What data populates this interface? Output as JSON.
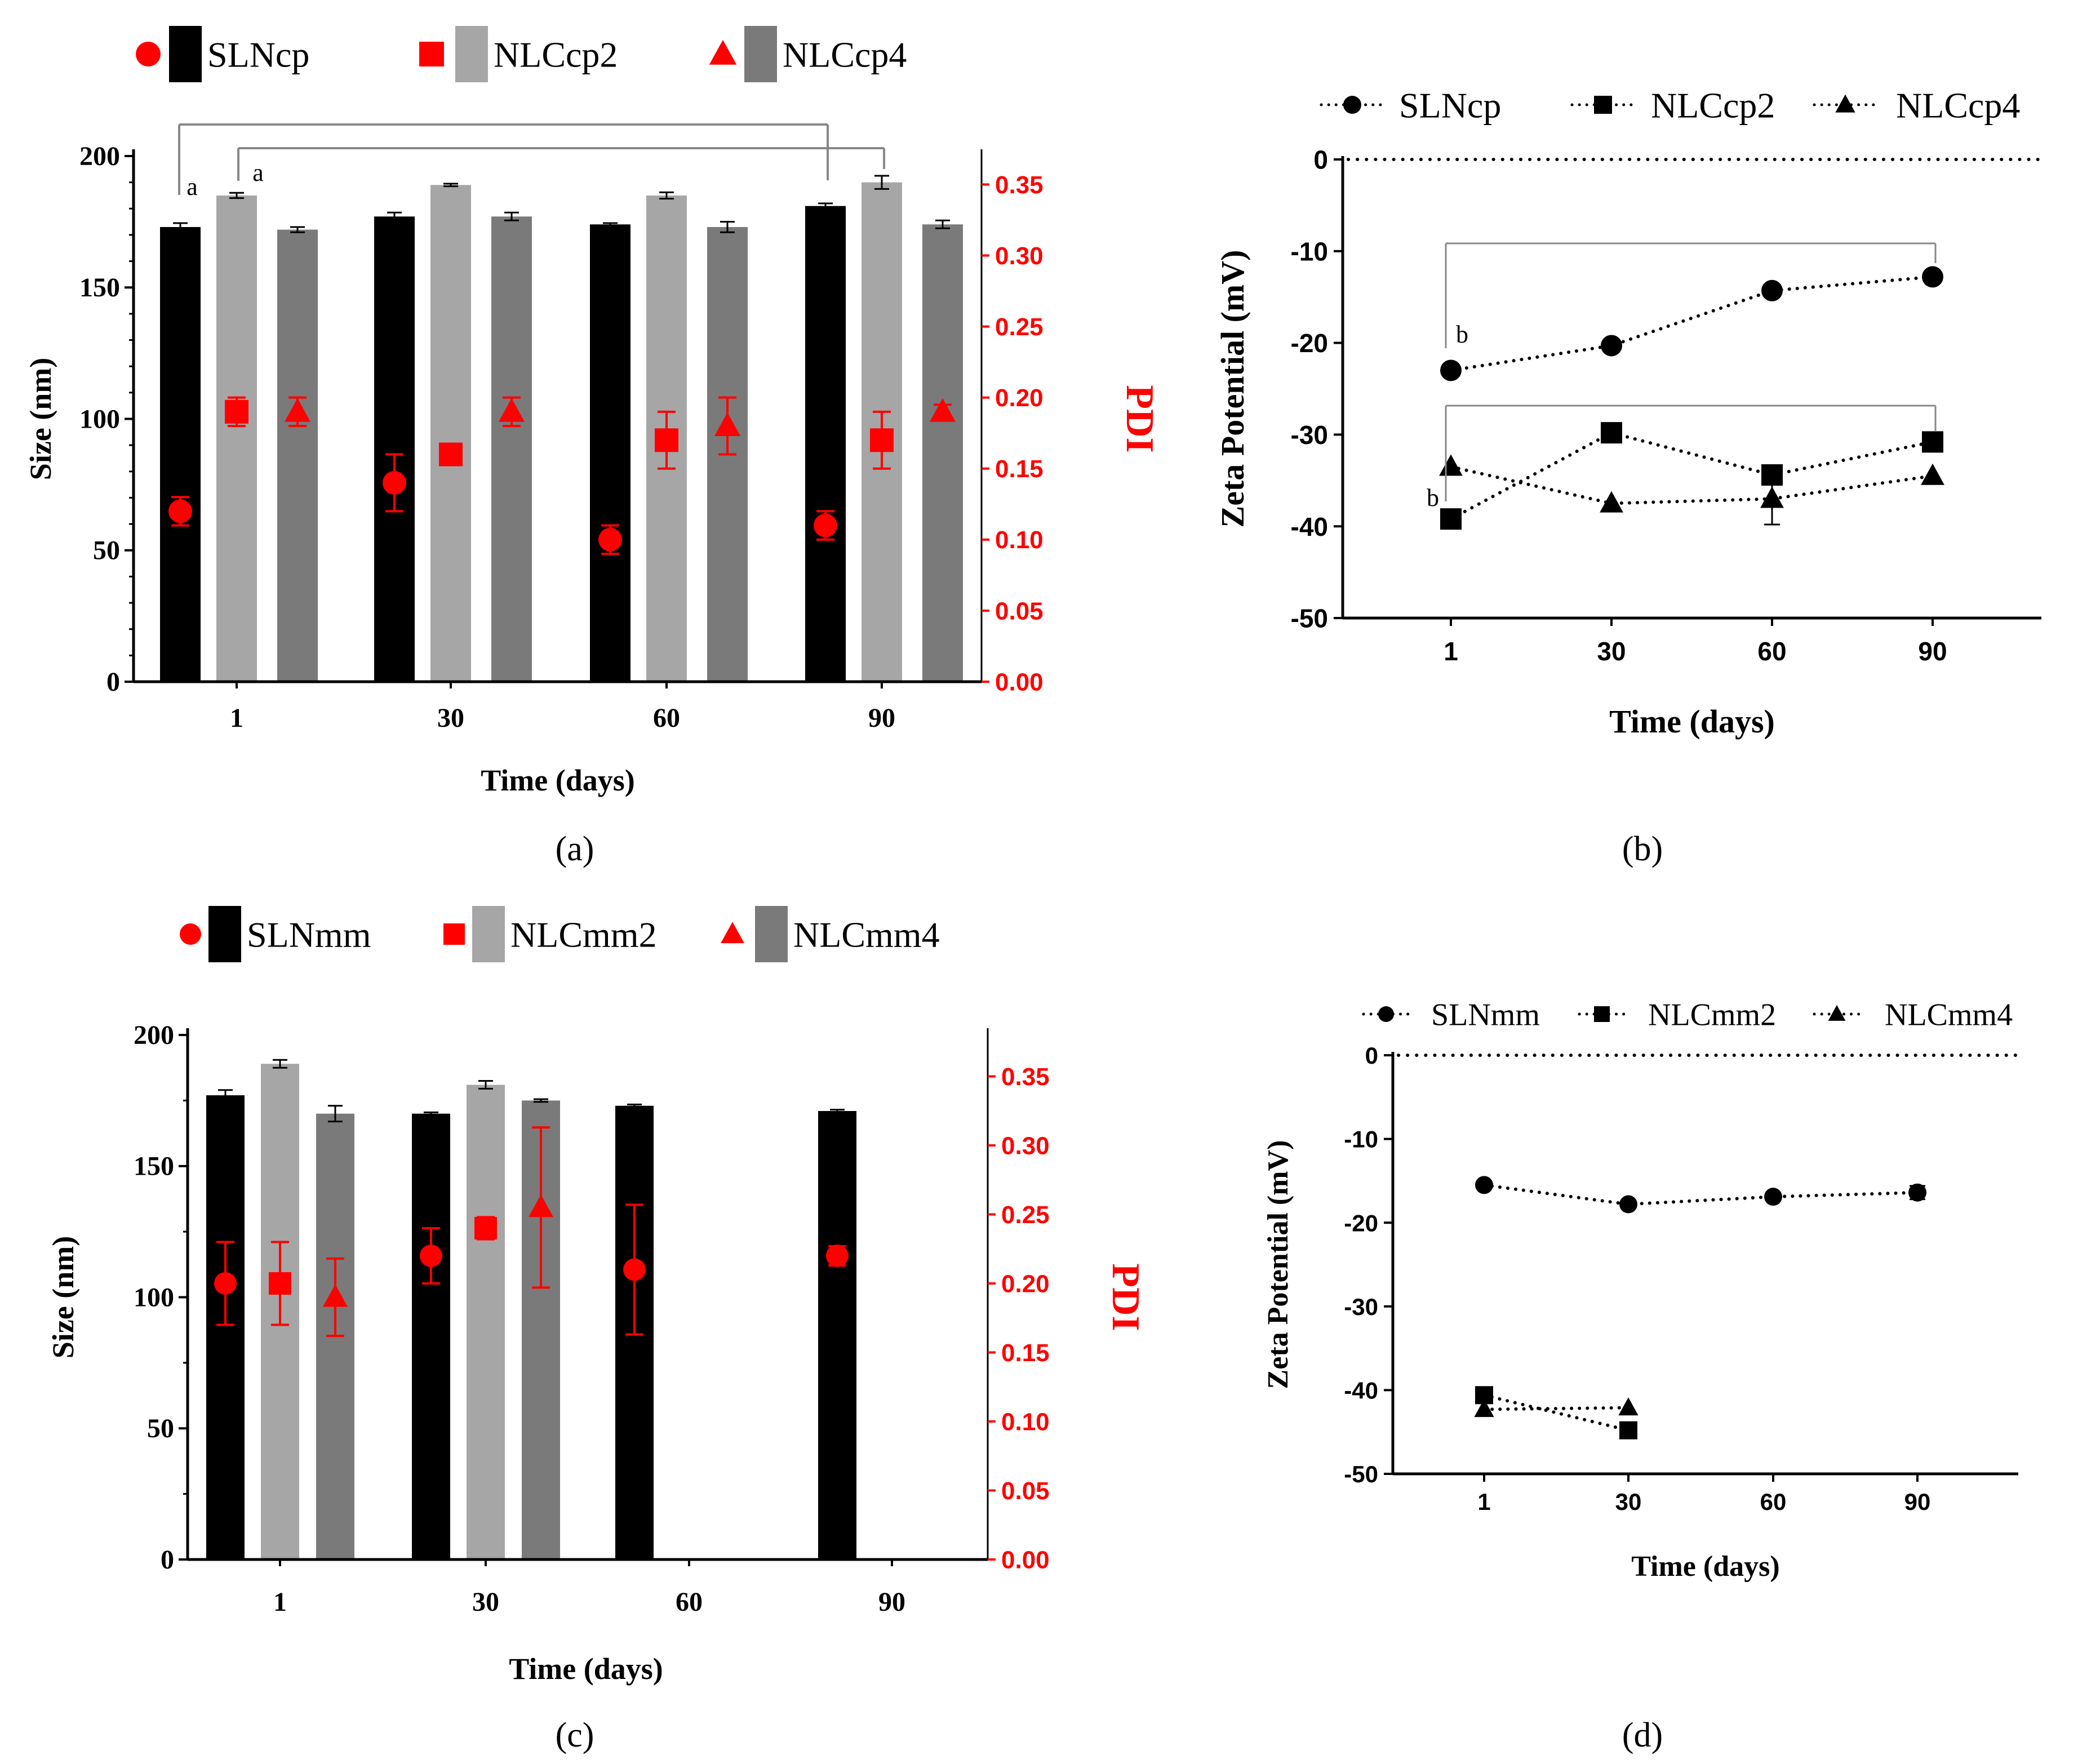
{
  "colors": {
    "sln": "#000000",
    "nlc2": "#a6a6a6",
    "nlc4": "#7a7a7a",
    "pdi": "#ff0000",
    "axis": "#000000",
    "bracket": "#888888"
  },
  "chart_data": [
    {
      "id": "a",
      "panel_label": "(a)",
      "type": "bar",
      "categories": [
        "1",
        "30",
        "60",
        "90"
      ],
      "xlabel": "Time (days)",
      "ylabel": "Size (nm)",
      "ylabel_right": "PDI",
      "ylim": [
        0,
        200
      ],
      "yticks": [
        "0",
        "50",
        "100",
        "150",
        "200"
      ],
      "ylim_right": [
        0,
        0.37
      ],
      "yticks_right": [
        "0.00",
        "0.05",
        "0.10",
        "0.15",
        "0.20",
        "0.25",
        "0.30",
        "0.35"
      ],
      "legend": [
        "SLNcp",
        "NLCcp2",
        "NLCcp4"
      ],
      "series": [
        {
          "name": "SLNcp",
          "values": [
            173,
            177,
            174,
            181
          ],
          "errors": [
            1.5,
            1.5,
            0.5,
            1
          ]
        },
        {
          "name": "NLCcp2",
          "values": [
            185,
            189,
            185,
            190
          ],
          "errors": [
            1,
            0.5,
            1.2,
            2.5
          ]
        },
        {
          "name": "NLCcp4",
          "values": [
            172,
            177,
            173,
            174
          ],
          "errors": [
            1,
            1.5,
            2,
            1.5
          ]
        }
      ],
      "pdi_series": [
        {
          "name": "SLNcp",
          "marker": "circle",
          "values": [
            0.12,
            0.14,
            0.1,
            0.11
          ],
          "errors": [
            0.01,
            0.02,
            0.01,
            0.01
          ]
        },
        {
          "name": "NLCcp2",
          "marker": "square",
          "values": [
            0.19,
            0.16,
            0.17,
            0.17
          ],
          "errors": [
            0.01,
            0.005,
            0.02,
            0.02
          ]
        },
        {
          "name": "NLCcp4",
          "marker": "triangle",
          "values": [
            0.19,
            0.19,
            0.18,
            0.19
          ],
          "errors": [
            0.01,
            0.01,
            0.02,
            0.005
          ]
        }
      ],
      "annotations": [
        "a",
        "a"
      ]
    },
    {
      "id": "b",
      "panel_label": "(b)",
      "type": "line",
      "x": [
        "1",
        "30",
        "60",
        "90"
      ],
      "xlabel": "Time (days)",
      "ylabel": "Zeta Potential (mV)",
      "ylim": [
        -50,
        0
      ],
      "yticks": [
        "0",
        "-10",
        "-20",
        "-30",
        "-40",
        "-50"
      ],
      "legend": [
        "SLNcp",
        "NLCcp2",
        "NLCcp4"
      ],
      "series": [
        {
          "name": "SLNcp",
          "marker": "circle",
          "values": [
            -23,
            -20.3,
            -14.3,
            -12.8
          ],
          "errors": [
            0.3,
            0.3,
            0.3,
            0.3
          ]
        },
        {
          "name": "NLCcp2",
          "marker": "square",
          "values": [
            -39.2,
            -29.8,
            -34.4,
            -30.8
          ],
          "errors": [
            0.3,
            0.3,
            0.3,
            0.3
          ]
        },
        {
          "name": "NLCcp4",
          "marker": "triangle",
          "values": [
            -33.5,
            -37.5,
            -37,
            -34.5
          ],
          "errors": [
            0.3,
            0.3,
            2.8,
            0.3
          ]
        }
      ],
      "annotations": [
        "b",
        "b"
      ]
    },
    {
      "id": "c",
      "panel_label": "(c)",
      "type": "bar",
      "categories": [
        "1",
        "30",
        "60",
        "90"
      ],
      "xlabel": "Time (days)",
      "ylabel": "Size (nm)",
      "ylabel_right": "PDI",
      "ylim": [
        0,
        200
      ],
      "yticks": [
        "0",
        "50",
        "100",
        "150",
        "200"
      ],
      "ylim_right": [
        0,
        0.38
      ],
      "yticks_right": [
        "0.00",
        "0.05",
        "0.10",
        "0.15",
        "0.20",
        "0.25",
        "0.30",
        "0.35"
      ],
      "legend": [
        "SLNmm",
        "NLCmm2",
        "NLCmm4"
      ],
      "series": [
        {
          "name": "SLNmm",
          "values": [
            177,
            170,
            173,
            171
          ],
          "errors": [
            2,
            0.5,
            0.5,
            0.5
          ]
        },
        {
          "name": "NLCmm2",
          "values": [
            189,
            181,
            null,
            null
          ],
          "errors": [
            1.5,
            1.5,
            null,
            null
          ]
        },
        {
          "name": "NLCmm4",
          "values": [
            170,
            175,
            null,
            null
          ],
          "errors": [
            3,
            0.5,
            null,
            null
          ]
        }
      ],
      "pdi_series": [
        {
          "name": "SLNmm",
          "marker": "circle",
          "values": [
            0.2,
            0.22,
            0.21,
            0.22
          ],
          "errors": [
            0.03,
            0.02,
            0.047,
            0.007
          ]
        },
        {
          "name": "NLCmm2",
          "marker": "square",
          "values": [
            0.2,
            0.24,
            null,
            null
          ],
          "errors": [
            0.03,
            0.008,
            null,
            null
          ]
        },
        {
          "name": "NLCmm4",
          "marker": "triangle",
          "values": [
            0.19,
            0.255,
            null,
            null
          ],
          "errors": [
            0.028,
            0.058,
            null,
            null
          ]
        }
      ]
    },
    {
      "id": "d",
      "panel_label": "(d)",
      "type": "line",
      "x": [
        "1",
        "30",
        "60",
        "90"
      ],
      "xlabel": "Time (days)",
      "ylabel": "Zeta Potential (mV)",
      "ylim": [
        -50,
        0
      ],
      "yticks": [
        "0",
        "-10",
        "-20",
        "-30",
        "-40",
        "-50"
      ],
      "legend": [
        "SLNmm",
        "NLCmm2",
        "NLCmm4"
      ],
      "series": [
        {
          "name": "SLNmm",
          "marker": "circle",
          "values": [
            -15.5,
            -17.8,
            -16.9,
            -16.4
          ],
          "errors": [
            0.3,
            0.3,
            0.4,
            0.8
          ]
        },
        {
          "name": "NLCmm2",
          "marker": "square",
          "values": [
            -40.6,
            -44.8,
            null,
            null
          ],
          "errors": [
            0.8,
            0.3,
            null,
            null
          ]
        },
        {
          "name": "NLCmm4",
          "marker": "triangle",
          "values": [
            -42.3,
            -42.1,
            null,
            null
          ],
          "errors": [
            0.4,
            0.3,
            null,
            null
          ]
        }
      ]
    }
  ]
}
